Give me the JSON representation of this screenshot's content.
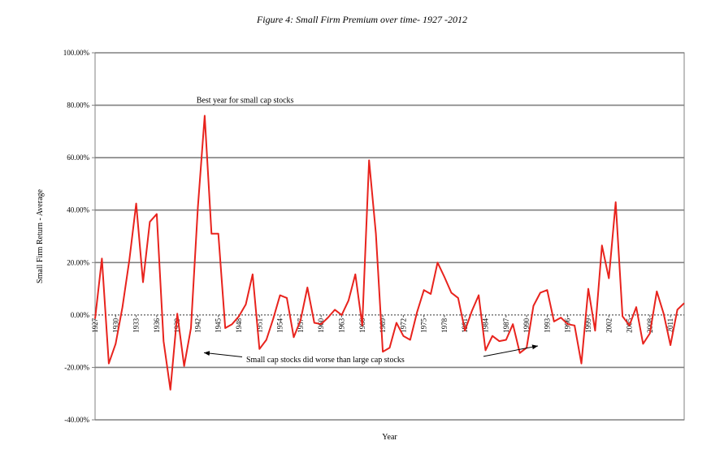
{
  "chart_data": {
    "type": "line",
    "title": "Figure 4: Small Firm Premium over time- 1927 -2012",
    "xlabel": "Year",
    "ylabel": "Small Firm Return - Average",
    "ylim": [
      -40,
      100
    ],
    "y_ticks": [
      "100.00%",
      "80.00%",
      "60.00%",
      "40.00%",
      "20.00%",
      "0.00%",
      "-20.00%",
      "-40.00%"
    ],
    "y_tick_values": [
      100,
      80,
      60,
      40,
      20,
      0,
      -20,
      -40
    ],
    "x_ticks": [
      1927,
      1930,
      1933,
      1936,
      1939,
      1942,
      1945,
      1948,
      1951,
      1954,
      1957,
      1960,
      1963,
      1966,
      1969,
      1972,
      1975,
      1978,
      1981,
      1984,
      1987,
      1990,
      1993,
      1996,
      1999,
      2002,
      2005,
      2008,
      2011
    ],
    "x_range": [
      1927,
      2013
    ],
    "grid": "horizontal",
    "series": [
      {
        "color": "#e8231d",
        "x": [
          1927,
          1928,
          1929,
          1930,
          1931,
          1932,
          1933,
          1934,
          1935,
          1936,
          1937,
          1938,
          1939,
          1940,
          1941,
          1942,
          1943,
          1944,
          1945,
          1946,
          1947,
          1948,
          1949,
          1950,
          1951,
          1952,
          1953,
          1954,
          1955,
          1956,
          1957,
          1958,
          1959,
          1960,
          1961,
          1962,
          1963,
          1964,
          1965,
          1966,
          1967,
          1968,
          1969,
          1970,
          1971,
          1972,
          1973,
          1974,
          1975,
          1976,
          1977,
          1978,
          1979,
          1980,
          1981,
          1982,
          1983,
          1984,
          1985,
          1986,
          1987,
          1988,
          1989,
          1990,
          1991,
          1992,
          1993,
          1994,
          1995,
          1996,
          1997,
          1998,
          1999,
          2000,
          2001,
          2002,
          2003,
          2004,
          2005,
          2006,
          2007,
          2008,
          2009,
          2010,
          2011,
          2012,
          2013
        ],
        "y": [
          -1.5,
          21.5,
          -18.5,
          -11,
          3,
          21,
          42.5,
          12.5,
          35.5,
          38.5,
          -10,
          -28.5,
          0.5,
          -19.5,
          -5,
          41,
          76,
          31,
          31,
          -5,
          -3.5,
          -0.5,
          4,
          15.5,
          -13,
          -9.5,
          -1.5,
          7.5,
          6.5,
          -8.5,
          -2,
          10.5,
          -3,
          -3.5,
          -1,
          2,
          0,
          5.5,
          15.5,
          -4,
          59,
          31,
          -14,
          -12.5,
          -3,
          -8,
          -9.5,
          1,
          9.5,
          8,
          20,
          14.5,
          8.5,
          6.5,
          -6,
          1.5,
          7.5,
          -13.5,
          -8,
          -10,
          -9.5,
          -3.5,
          -14.5,
          -12.5,
          3.5,
          8.5,
          9.5,
          -2.5,
          -1,
          -3.5,
          -4,
          -18.5,
          10,
          -6,
          26.5,
          14,
          43,
          -0.5,
          -4,
          3,
          -11,
          -7,
          9,
          0.5,
          -11.5,
          2,
          4.5
        ]
      }
    ],
    "annotations": [
      {
        "id": "best",
        "text": "Best year for small cap stocks"
      },
      {
        "id": "worse",
        "text": "Small cap stocks did worse than large cap stocks"
      }
    ]
  }
}
